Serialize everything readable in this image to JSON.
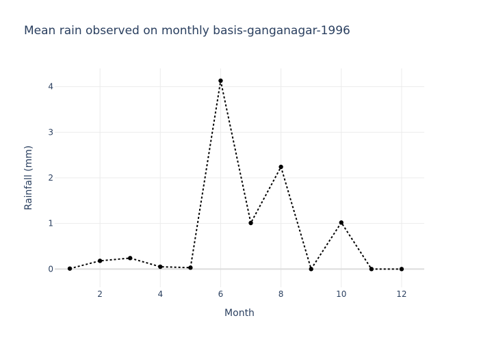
{
  "chart_data": {
    "type": "line",
    "title": "Mean rain observed on monthly basis-ganganagar-1996",
    "xlabel": "Month",
    "ylabel": "Rainfall (mm)",
    "x": [
      1,
      2,
      3,
      4,
      5,
      6,
      7,
      8,
      9,
      10,
      11,
      12
    ],
    "series": [
      {
        "values": [
          0.01,
          0.18,
          0.24,
          0.05,
          0.03,
          4.13,
          1.01,
          2.24,
          0.0,
          1.02,
          0.0,
          0.0
        ]
      }
    ],
    "xlim": [
      0.5,
      12.75
    ],
    "ylim": [
      -0.4,
      4.4
    ],
    "xticks": [
      2,
      4,
      6,
      8,
      10,
      12
    ],
    "yticks": [
      0,
      1,
      2,
      3,
      4
    ],
    "grid": true,
    "line_style": "dotted",
    "markers": true,
    "line_color": "#000000"
  }
}
